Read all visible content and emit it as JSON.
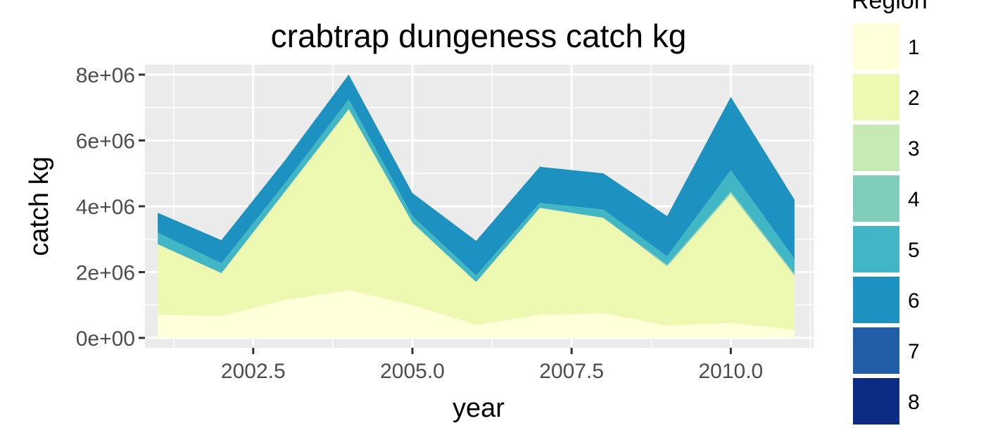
{
  "chart_data": {
    "type": "area",
    "stacked": true,
    "title": "crabtrap dungeness catch kg",
    "xlabel": "year",
    "ylabel": "catch kg",
    "xlim": [
      2000.8,
      2011.3
    ],
    "ylim": [
      -300000,
      8300000
    ],
    "x_ticks": [
      2002.5,
      2005.0,
      2007.5,
      2010.0
    ],
    "x_tick_labels": [
      "2002.5",
      "2005.0",
      "2007.5",
      "2010.0"
    ],
    "y_ticks": [
      0,
      2000000,
      4000000,
      6000000,
      8000000
    ],
    "y_tick_labels": [
      "0e+00",
      "2e+06",
      "4e+06",
      "6e+06",
      "8e+06"
    ],
    "grid": true,
    "legend_title": "Region",
    "legend_position": "right",
    "x": [
      2001,
      2002,
      2003,
      2004,
      2005,
      2006,
      2007,
      2008,
      2009,
      2010,
      2011
    ],
    "series": [
      {
        "name": "1",
        "color": "#ffffd9",
        "values": [
          700000,
          670000,
          1150000,
          1450000,
          1000000,
          400000,
          700000,
          750000,
          380000,
          450000,
          250000
        ]
      },
      {
        "name": "2",
        "color": "#edf8b1",
        "values": [
          2150000,
          1300000,
          3300000,
          5500000,
          2500000,
          1300000,
          3250000,
          2900000,
          1800000,
          3900000,
          1650000
        ]
      },
      {
        "name": "3",
        "color": "#c7e9b4",
        "values": [
          0,
          0,
          0,
          0,
          0,
          0,
          0,
          0,
          0,
          50000,
          0
        ]
      },
      {
        "name": "4",
        "color": "#7fcdbb",
        "values": [
          0,
          0,
          0,
          0,
          0,
          0,
          0,
          0,
          50000,
          50000,
          50000
        ]
      },
      {
        "name": "5",
        "color": "#41b6c4",
        "values": [
          350000,
          300000,
          250000,
          300000,
          200000,
          200000,
          150000,
          250000,
          250000,
          650000,
          450000
        ]
      },
      {
        "name": "6",
        "color": "#1d91c0",
        "values": [
          600000,
          700000,
          700000,
          750000,
          700000,
          1050000,
          1100000,
          1100000,
          1220000,
          2220000,
          1800000
        ]
      },
      {
        "name": "7",
        "color": "#225ea8",
        "values": [
          0,
          0,
          0,
          0,
          0,
          0,
          0,
          0,
          0,
          0,
          0
        ]
      },
      {
        "name": "8",
        "color": "#0c2c84",
        "values": [
          0,
          0,
          0,
          0,
          0,
          0,
          0,
          0,
          0,
          0,
          0
        ]
      }
    ]
  },
  "colors": {
    "panel_background": "#ebebeb",
    "grid_major": "#ffffff",
    "tick_mark": "#333333",
    "tick_text": "#4d4d4d"
  }
}
